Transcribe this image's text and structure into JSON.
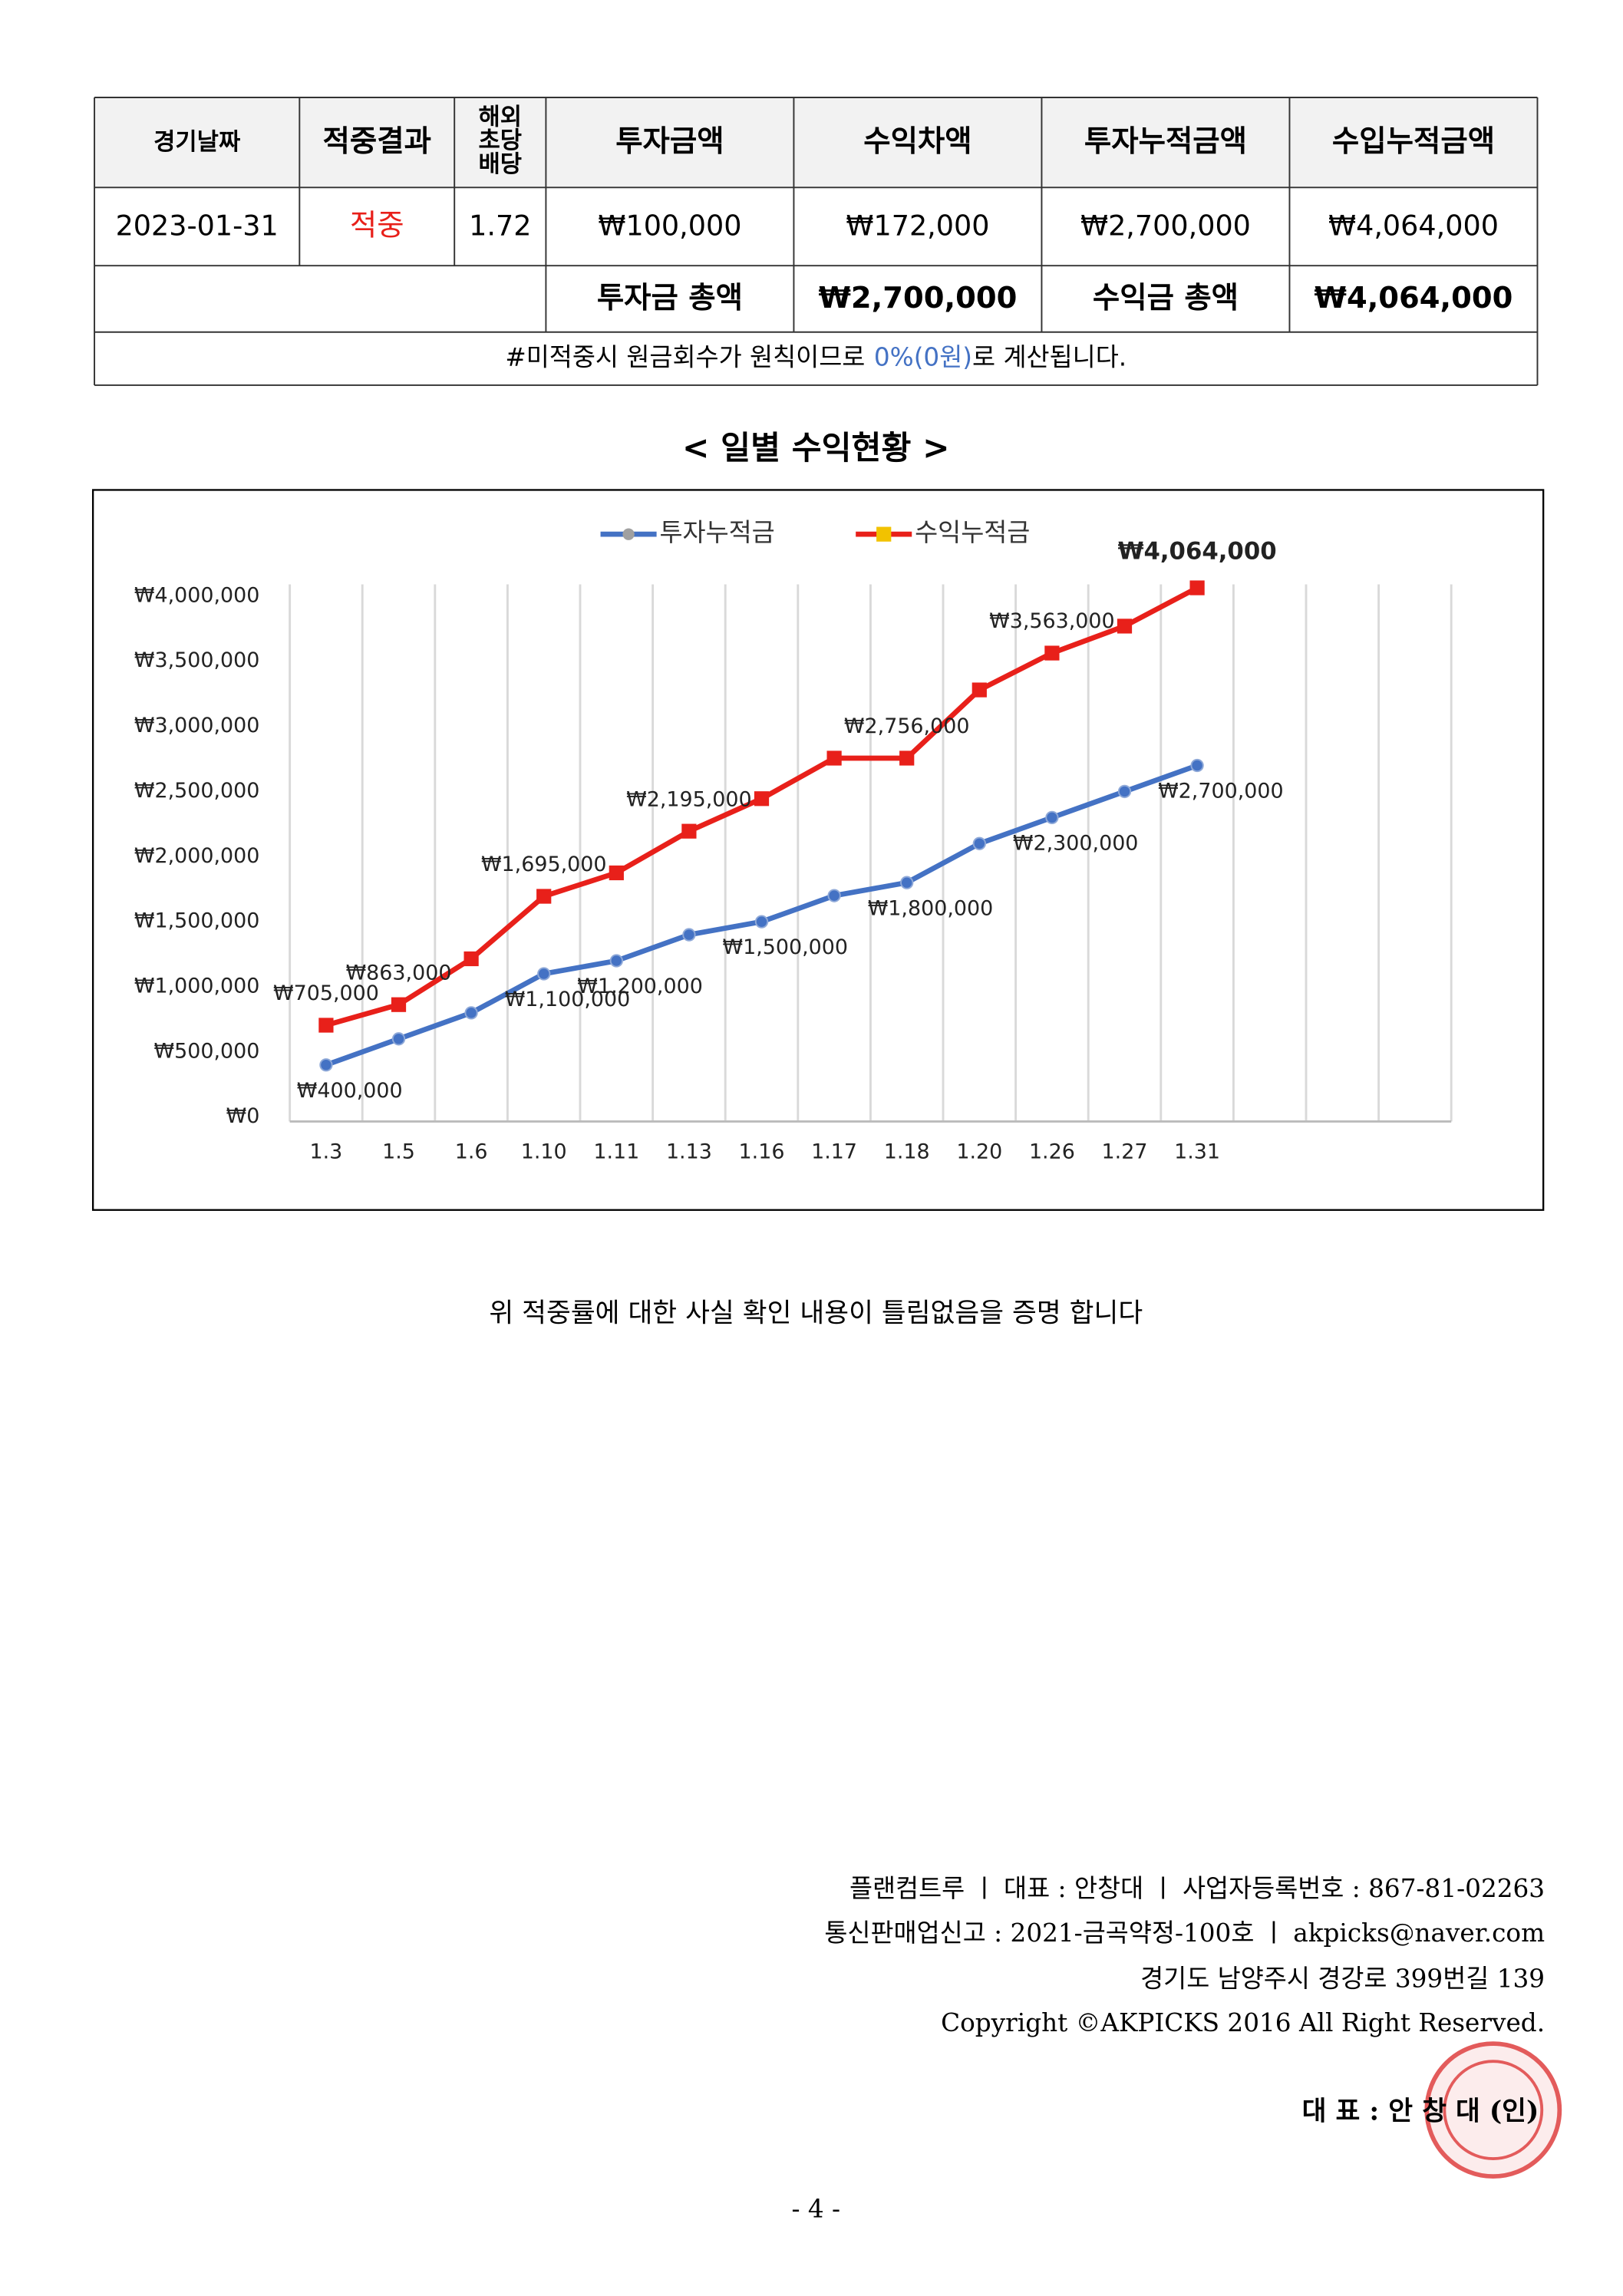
{
  "table": {
    "columns": [
      "경기날짜",
      "적중결과",
      [
        "해외",
        "초당",
        "배당"
      ],
      "투자금액",
      "수익차액",
      "투자누적금액",
      "수입누적금액"
    ],
    "rows": [
      [
        "2023-01-31",
        "적중",
        "1.72",
        "₩100,000",
        "₩172,000",
        "₩2,700,000",
        "₩4,064,000"
      ]
    ],
    "totals": [
      "투자금 총액",
      "₩2,700,000",
      "수익금 총액",
      "₩4,064,000"
    ],
    "note": [
      "#미적중시 원금회수가 원칙이므로",
      "0%(0원)",
      "로 계산됩니다."
    ]
  },
  "chart_title": "< 일별 수익현황 >",
  "chart_data": {
    "type": "line",
    "categories": [
      "1.3",
      "1.5",
      "1.6",
      "1.10",
      "1.11",
      "1.13",
      "1.16",
      "1.17",
      "1.18",
      "1.20",
      "1.26",
      "1.27",
      "1.31",
      null,
      null,
      null
    ],
    "series": [
      {
        "name": "투자누적금",
        "color": "#4472c4",
        "values": [
          400000,
          600000,
          800000,
          1100000,
          1200000,
          1400000,
          1500000,
          1700000,
          1800000,
          2100000,
          2300000,
          2500000,
          2700000,
          null,
          null,
          null
        ],
        "value_labels": [
          "₩400,000",
          null,
          null,
          "₩1,100,000",
          "₩1,200,000",
          null,
          "₩1,500,000",
          null,
          "₩1,800,000",
          null,
          "₩2,300,000",
          null,
          "₩2,700,000",
          null,
          null,
          null
        ]
      },
      {
        "name": "수익누적금",
        "color": "#e8201a",
        "values": [
          705000,
          863000,
          1215000,
          1695000,
          1875000,
          2195000,
          2445000,
          2756000,
          2756000,
          3280000,
          3563000,
          3770000,
          4064000,
          null,
          null,
          null
        ],
        "value_labels": [
          "₩705,000",
          "₩863,000",
          null,
          "₩1,695,000",
          null,
          "₩2,195,000",
          null,
          null,
          "₩2,756,000",
          null,
          "₩3,563,000",
          null,
          "₩4,064,000",
          null,
          null,
          null
        ]
      }
    ],
    "ylim": [
      0,
      4000000
    ],
    "yticks": [
      {
        "value": 0,
        "label": "₩0"
      },
      {
        "value": 500000,
        "label": "₩500,000"
      },
      {
        "value": 1000000,
        "label": "₩1,000,000"
      },
      {
        "value": 1500000,
        "label": "₩1,500,000"
      },
      {
        "value": 2000000,
        "label": "₩2,000,000"
      },
      {
        "value": 2500000,
        "label": "₩2,500,000"
      },
      {
        "value": 3000000,
        "label": "₩3,000,000"
      },
      {
        "value": 3500000,
        "label": "₩3,500,000"
      },
      {
        "value": 4000000,
        "label": "₩4,000,000"
      }
    ],
    "grid": true,
    "legend": "top"
  },
  "statement": "위 적중률에 대한 사실 확인 내용이 틀림없음을 증명 합니다",
  "footer": {
    "lines": [
      "플랜컴트루 ㅣ 대표 : 안창대 ㅣ 사업자등록번호 : 867-81-02263",
      "통신판매업신고 : 2021-금곡약정-100호 ㅣ akpicks@naver.com",
      "경기도 남양주시 경강로 399번길 139",
      "Copyright ©AKPICKS 2016 All Right Reserved."
    ],
    "signature": "대 표 : 안 창 대 (인)"
  },
  "page_number": "- 4 -"
}
